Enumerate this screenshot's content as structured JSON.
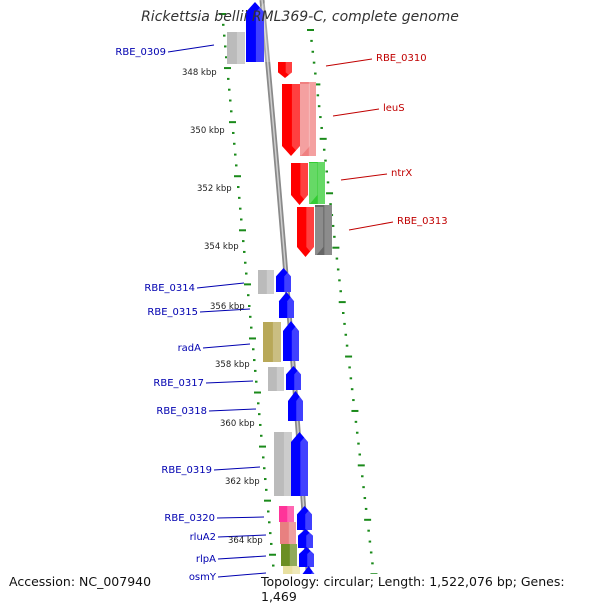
{
  "title": "Rickettsia bellii RML369-C, complete genome",
  "footer": {
    "accession": "Accession: NC_007940",
    "summary": "Topology: circular; Length: 1,522,076 bp; Genes: 1,469"
  },
  "colors": {
    "forward_label": "#c00000",
    "reverse_label": "#0000b0",
    "backbone": "#8a8a8a",
    "tick": "#1a8a1a",
    "cds_red": "#ff0000",
    "cds_blue": "#0000ff"
  },
  "scale_labels": [
    "348 kbp",
    "350 kbp",
    "352 kbp",
    "354 kbp",
    "356 kbp",
    "358 kbp",
    "360 kbp",
    "362 kbp",
    "364 kbp"
  ],
  "forward_genes": [
    {
      "label": "RBE_0310",
      "cog_color": null
    },
    {
      "label": "leuS",
      "cog_color": "#f08080"
    },
    {
      "label": "ntrX",
      "cog_color": "#33cc33"
    },
    {
      "label": "RBE_0313",
      "cog_color": "#666666"
    }
  ],
  "reverse_genes": [
    {
      "label": "RBE_0309",
      "cog_color": "#bbbbbb"
    },
    {
      "label": "RBE_0314",
      "cog_color": "#bbbbbb"
    },
    {
      "label": "RBE_0315",
      "cog_color": null
    },
    {
      "label": "radA",
      "cog_color": "#b8a858"
    },
    {
      "label": "RBE_0317",
      "cog_color": "#bbbbbb"
    },
    {
      "label": "RBE_0318",
      "cog_color": null
    },
    {
      "label": "RBE_0319",
      "cog_color": "#bbbbbb"
    },
    {
      "label": "RBE_0320",
      "cog_color": "#ff3399"
    },
    {
      "label": "rluA2",
      "cog_color": "#e88080"
    },
    {
      "label": "rlpA",
      "cog_color": "#6b8e23"
    },
    {
      "label": "osmY",
      "cog_color": "#e8e0a0"
    }
  ]
}
